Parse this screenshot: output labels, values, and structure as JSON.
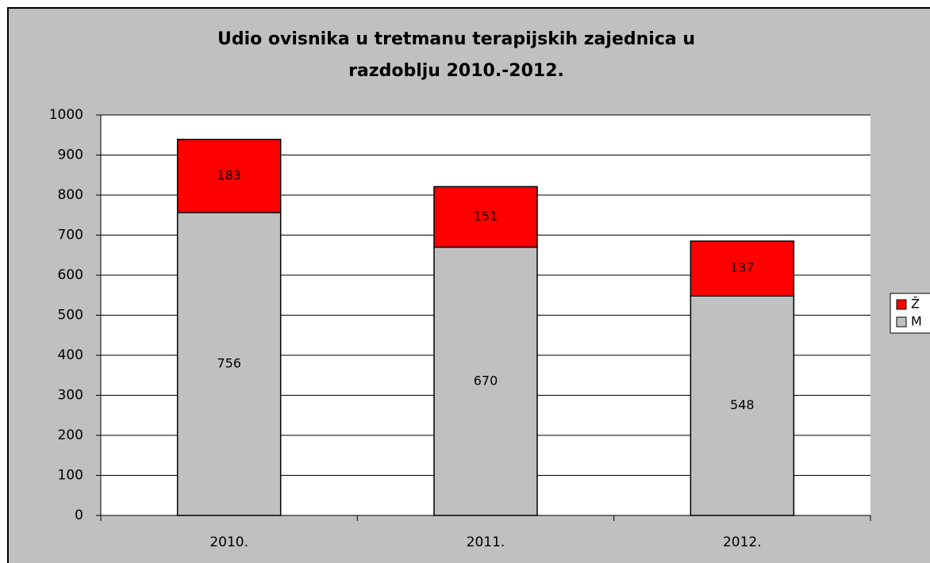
{
  "chart_data": {
    "type": "stacked_bar",
    "title": "Udio ovisnika u tretmanu terapijskih zajednica u\nrazdoblju 2010.-2012.",
    "categories": [
      "2010.",
      "2011.",
      "2012."
    ],
    "series": [
      {
        "name": "M",
        "color": "#c0c0c0",
        "values": [
          756,
          670,
          548
        ]
      },
      {
        "name": "Ž",
        "color": "#ff0000",
        "values": [
          183,
          151,
          137
        ]
      }
    ],
    "ylim": [
      0,
      1000
    ],
    "yticks": [
      0,
      100,
      200,
      300,
      400,
      500,
      600,
      700,
      800,
      900,
      1000
    ],
    "grid": true,
    "legend": "right"
  }
}
